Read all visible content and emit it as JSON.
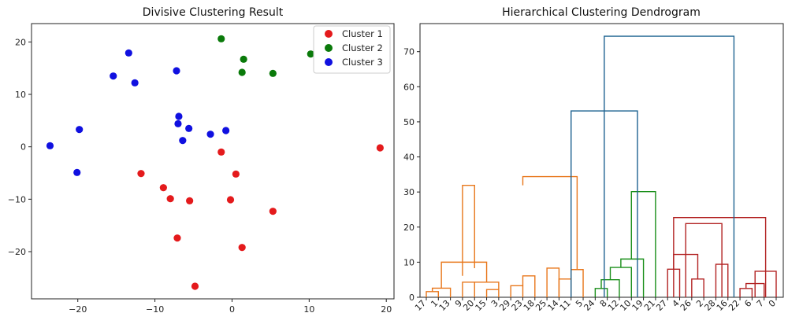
{
  "chart_data": [
    {
      "type": "scatter",
      "title": "Divisive Clustering Result",
      "xlim": [
        -26,
        21
      ],
      "ylim": [
        -29,
        23.5
      ],
      "xticks": [
        -20,
        -10,
        0,
        10,
        20
      ],
      "yticks": [
        -20,
        -10,
        0,
        10,
        20
      ],
      "xtick_labels": [
        "−20",
        "−10",
        "0",
        "10",
        "20"
      ],
      "ytick_labels": [
        "−20",
        "−10",
        "0",
        "10",
        "20"
      ],
      "legend_position": "top-right",
      "grid": false,
      "series": [
        {
          "name": "Cluster 1",
          "color": "#e41a1c",
          "points": [
            [
              -1.4,
              -1.0
            ],
            [
              0.5,
              -5.2
            ],
            [
              -11.8,
              -5.1
            ],
            [
              -8.9,
              -7.8
            ],
            [
              -8.0,
              -9.9
            ],
            [
              -0.2,
              -10.1
            ],
            [
              -5.5,
              -10.3
            ],
            [
              5.3,
              -12.3
            ],
            [
              -7.1,
              -17.4
            ],
            [
              1.3,
              -19.2
            ],
            [
              -4.8,
              -26.6
            ],
            [
              19.2,
              -0.2
            ]
          ]
        },
        {
          "name": "Cluster 2",
          "color": "#0a7a0a",
          "points": [
            [
              -1.4,
              20.6
            ],
            [
              1.5,
              16.7
            ],
            [
              10.2,
              17.7
            ],
            [
              1.3,
              14.2
            ],
            [
              5.3,
              14.0
            ]
          ]
        },
        {
          "name": "Cluster 3",
          "color": "#1010e0",
          "points": [
            [
              -13.4,
              17.9
            ],
            [
              -15.4,
              13.5
            ],
            [
              -12.6,
              12.2
            ],
            [
              -7.2,
              14.5
            ],
            [
              -6.9,
              5.8
            ],
            [
              -7.0,
              4.4
            ],
            [
              -5.6,
              3.5
            ],
            [
              -6.4,
              1.2
            ],
            [
              -2.8,
              2.4
            ],
            [
              -0.8,
              3.1
            ],
            [
              -19.8,
              3.3
            ],
            [
              -23.6,
              0.2
            ],
            [
              -20.1,
              -4.9
            ]
          ]
        }
      ]
    },
    {
      "type": "dendrogram",
      "title": "Hierarchical Clustering Dendrogram",
      "ylim": [
        0,
        78
      ],
      "yticks": [
        0,
        10,
        20,
        30,
        40,
        50,
        60,
        70
      ],
      "leaf_labels": [
        "17",
        "1",
        "13",
        "9",
        "20",
        "15",
        "3",
        "29",
        "23",
        "18",
        "25",
        "14",
        "11",
        "5",
        "24",
        "8",
        "12",
        "10",
        "19",
        "21",
        "27",
        "4",
        "26",
        "2",
        "28",
        "16",
        "22",
        "6",
        "7",
        "0"
      ],
      "colors": {
        "orange": "#e8761a",
        "green": "#1a8f1a",
        "red": "#b22222",
        "blue": "#1f6391"
      },
      "links": [
        [
          0,
          1,
          1.6,
          "orange"
        ],
        [
          1,
          2,
          2.6,
          "orange"
        ],
        [
          3,
          4,
          4.3,
          "orange"
        ],
        [
          5,
          6,
          2.2,
          "orange"
        ],
        [
          7,
          8,
          4.3,
          "orange"
        ],
        [
          8,
          9,
          10.0,
          "orange"
        ],
        [
          10,
          11,
          3.3,
          "orange"
        ],
        [
          11,
          12,
          6.1,
          "orange"
        ],
        [
          13,
          14,
          8.3,
          "orange"
        ],
        [
          15,
          16,
          31.9,
          "orange"
        ],
        [
          17,
          18,
          5.2,
          "orange"
        ],
        [
          18,
          19,
          7.9,
          "orange"
        ],
        [
          20,
          21,
          34.4,
          "orange"
        ],
        [
          22,
          23,
          2.5,
          "green"
        ],
        [
          23,
          24,
          5.0,
          "green"
        ],
        [
          25,
          26,
          8.5,
          "green"
        ],
        [
          27,
          28,
          10.9,
          "green"
        ],
        [
          29,
          30,
          30.1,
          "green"
        ],
        [
          31,
          32,
          8.0,
          "red"
        ],
        [
          33,
          34,
          5.2,
          "red"
        ],
        [
          35,
          36,
          12.2,
          "red"
        ],
        [
          37,
          38,
          9.4,
          "red"
        ],
        [
          39,
          40,
          2.5,
          "red"
        ],
        [
          41,
          42,
          3.9,
          "red"
        ],
        [
          43,
          44,
          7.4,
          "red"
        ],
        [
          45,
          46,
          21.0,
          "red"
        ],
        [
          47,
          48,
          22.7,
          "red"
        ],
        [
          49,
          50,
          53.1,
          "blue"
        ],
        [
          51,
          52,
          74.4,
          "blue"
        ]
      ],
      "link_coords": [
        [
          0,
          1
        ],
        [
          0.5,
          2
        ],
        [
          3,
          4
        ],
        [
          5,
          6
        ],
        [
          4,
          6
        ],
        [
          1.25,
          5
        ],
        [
          7,
          8
        ],
        [
          8,
          9
        ],
        [
          10,
          11
        ],
        [
          3,
          4
        ],
        [
          11,
          12
        ],
        [
          12,
          13
        ],
        [
          8,
          12.5
        ],
        [
          14,
          15
        ],
        [
          14.5,
          16
        ],
        [
          15.25,
          17
        ],
        [
          16.125,
          18
        ],
        [
          17,
          19
        ],
        [
          20,
          21
        ],
        [
          22,
          23
        ],
        [
          20.5,
          22.5
        ],
        [
          24,
          25
        ],
        [
          26,
          27
        ],
        [
          26.5,
          28
        ],
        [
          27.25,
          29
        ],
        [
          21.5,
          24.5
        ],
        [
          20.5,
          28.125
        ],
        [
          12,
          17.5
        ],
        [
          14.75,
          25.5
        ]
      ],
      "link_children": [
        [
          null,
          null
        ],
        [
          0,
          null
        ],
        [
          null,
          null
        ],
        [
          null,
          null
        ],
        [
          2,
          3
        ],
        [
          1,
          4
        ],
        [
          null,
          null
        ],
        [
          6,
          null
        ],
        [
          null,
          null
        ],
        [
          7,
          8
        ],
        [
          null,
          null
        ],
        [
          10,
          null
        ],
        [
          9,
          11
        ],
        [
          null,
          null
        ],
        [
          13,
          null
        ],
        [
          14,
          null
        ],
        [
          15,
          null
        ],
        [
          16,
          null
        ],
        [
          null,
          null
        ],
        [
          null,
          null
        ],
        [
          18,
          19
        ],
        [
          null,
          null
        ],
        [
          null,
          null
        ],
        [
          22,
          null
        ],
        [
          null,
          null
        ],
        [
          null,
          null
        ],
        [
          null,
          null
        ],
        [
          null,
          null
        ],
        [
          null,
          null
        ]
      ]
    }
  ]
}
